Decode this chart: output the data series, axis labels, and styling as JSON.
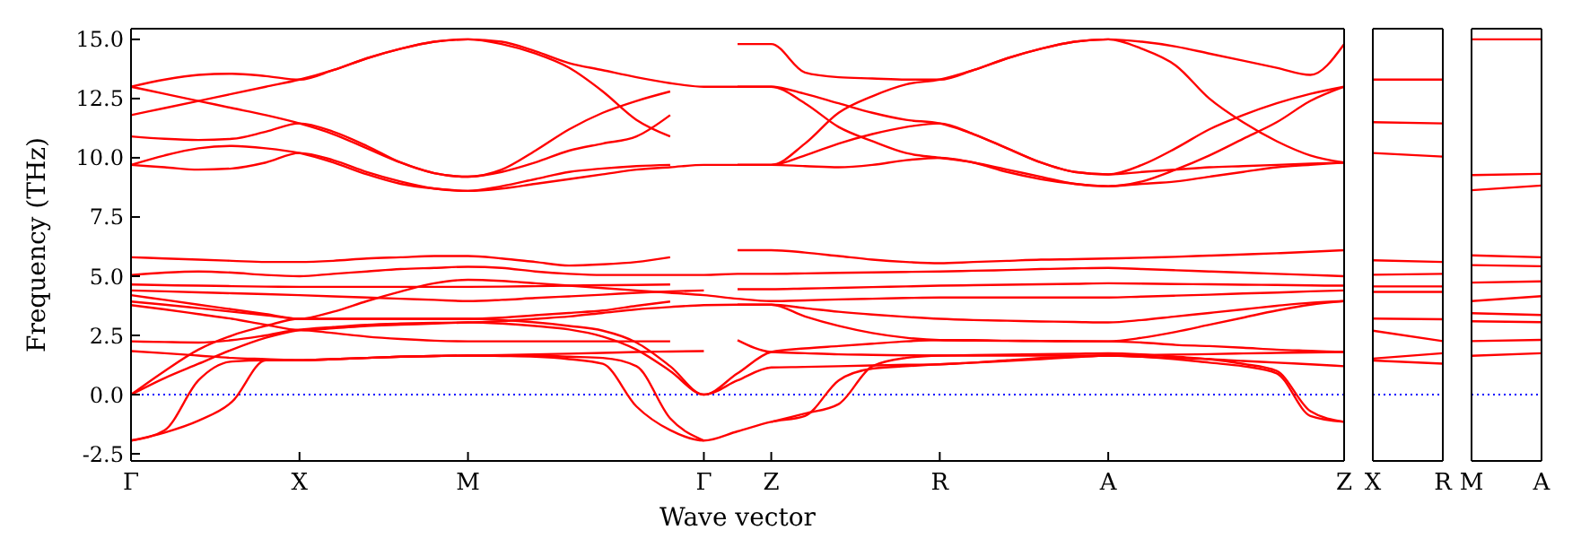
{
  "chart_data": [
    {
      "type": "line",
      "xlabel": "Wave vector",
      "ylabel": "Frequency (THz)",
      "ylim": [
        -2.8,
        15.45
      ],
      "categories": [
        "Γ",
        null,
        null,
        null,
        null,
        "X",
        null,
        null,
        null,
        null,
        "M",
        null,
        null,
        null,
        null,
        null,
        null,
        "Γ",
        null,
        "Z",
        null,
        null,
        null,
        null,
        "R",
        null,
        null,
        null,
        null,
        "A",
        null,
        null,
        null,
        null,
        null,
        null,
        "Z"
      ],
      "yticks": [
        {
          "value": -2.5,
          "label": "-2.5"
        },
        {
          "value": 0,
          "label": "0.0"
        },
        {
          "value": 2.5,
          "label": "2.5"
        },
        {
          "value": 5,
          "label": "5.0"
        },
        {
          "value": 7.5,
          "label": "7.5"
        },
        {
          "value": 10,
          "label": "10.0"
        },
        {
          "value": 12.5,
          "label": "12.5"
        },
        {
          "value": 15,
          "label": "15.0"
        }
      ],
      "ref_lines": [
        {
          "axis": "y",
          "value": 0,
          "color": "#0000ff",
          "line_style": "dotted"
        }
      ],
      "series": [
        {
          "color": "#ff0000",
          "values": [
            13.0,
            13.3,
            13.5,
            13.55,
            13.45,
            13.3,
            13.7,
            14.2,
            14.6,
            14.9,
            15.0,
            14.9,
            14.5,
            14.0,
            13.7,
            13.4,
            13.15,
            13.0,
            13.0,
            13.0,
            12.7,
            12.3,
            11.9,
            11.6,
            11.45,
            11.0,
            10.4,
            9.8,
            9.4,
            9.3,
            9.7,
            10.4,
            11.2,
            11.8,
            12.3,
            12.7,
            13.0
          ]
        },
        {
          "color": "#ff0000",
          "values": [
            13.0,
            12.7,
            12.4,
            12.1,
            11.8,
            11.45,
            11.0,
            10.4,
            9.8,
            9.35,
            9.2,
            9.5,
            10.3,
            11.2,
            11.9,
            12.4,
            12.8,
            null,
            9.7,
            9.7,
            10.6,
            11.9,
            12.6,
            13.1,
            13.3,
            13.7,
            14.2,
            14.6,
            14.9,
            15.0,
            14.6,
            13.9,
            12.5,
            11.5,
            10.7,
            10.1,
            9.8
          ]
        },
        {
          "color": "#ff0000",
          "values": [
            11.8,
            12.1,
            12.4,
            12.7,
            13.0,
            13.3,
            13.7,
            14.2,
            14.6,
            14.9,
            15.0,
            14.8,
            14.4,
            13.8,
            12.8,
            11.6,
            10.9,
            null,
            9.7,
            9.7,
            9.65,
            9.6,
            9.7,
            9.9,
            10.0,
            9.8,
            9.5,
            9.2,
            8.9,
            8.8,
            8.9,
            9.0,
            9.2,
            9.4,
            9.6,
            9.7,
            9.8
          ]
        },
        {
          "color": "#ff0000",
          "values": [
            10.9,
            10.8,
            10.75,
            10.8,
            11.1,
            11.45,
            11.1,
            10.5,
            9.8,
            9.35,
            9.2,
            9.4,
            9.8,
            10.3,
            10.6,
            10.9,
            11.8,
            null,
            14.8,
            14.8,
            13.6,
            13.4,
            13.35,
            13.3,
            13.3,
            13.7,
            14.2,
            14.6,
            14.9,
            15.0,
            14.9,
            14.7,
            14.4,
            14.1,
            13.8,
            13.5,
            14.8
          ]
        },
        {
          "color": "#ff0000",
          "values": [
            9.7,
            10.1,
            10.4,
            10.5,
            10.4,
            10.2,
            9.8,
            9.3,
            8.9,
            8.7,
            8.6,
            8.8,
            9.1,
            9.4,
            9.55,
            9.65,
            9.7,
            null,
            13.0,
            13.0,
            12.3,
            11.3,
            10.7,
            10.2,
            10.0,
            9.8,
            9.4,
            9.1,
            8.9,
            8.8,
            9.0,
            9.5,
            10.1,
            10.8,
            11.5,
            12.4,
            13.0
          ]
        },
        {
          "color": "#ff0000",
          "values": [
            9.7,
            9.6,
            9.5,
            9.55,
            9.8,
            10.2,
            9.9,
            9.4,
            9.0,
            8.7,
            8.6,
            8.7,
            8.9,
            9.1,
            9.3,
            9.5,
            9.6,
            9.7,
            9.7,
            9.7,
            10.1,
            10.6,
            11.0,
            11.3,
            11.45,
            11.0,
            10.4,
            9.8,
            9.4,
            9.3,
            9.4,
            9.5,
            9.6,
            9.65,
            9.7,
            9.75,
            9.8
          ]
        },
        {
          "color": "#ff0000",
          "values": [
            5.8,
            5.75,
            5.7,
            5.65,
            5.6,
            5.6,
            5.65,
            5.75,
            5.8,
            5.85,
            5.85,
            5.75,
            5.6,
            5.45,
            5.5,
            5.6,
            5.8,
            null,
            6.1,
            6.1,
            6.0,
            5.85,
            5.7,
            5.6,
            5.55,
            5.6,
            5.65,
            5.7,
            5.72,
            5.75,
            5.78,
            5.82,
            5.87,
            5.92,
            5.97,
            6.03,
            6.1
          ]
        },
        {
          "color": "#ff0000",
          "values": [
            5.05,
            5.15,
            5.2,
            5.15,
            5.05,
            5.0,
            5.1,
            5.2,
            5.3,
            5.35,
            5.4,
            5.35,
            5.2,
            5.1,
            5.05,
            5.05,
            5.05,
            5.05,
            5.1,
            5.1,
            5.12,
            5.14,
            5.16,
            5.18,
            5.2,
            5.23,
            5.26,
            5.3,
            5.33,
            5.35,
            5.3,
            5.25,
            5.2,
            5.15,
            5.1,
            5.05,
            5.0
          ]
        },
        {
          "color": "#ff0000",
          "values": [
            4.65,
            4.62,
            4.6,
            4.58,
            4.56,
            4.55,
            4.55,
            4.55,
            4.55,
            4.55,
            4.55,
            4.56,
            4.58,
            4.6,
            4.62,
            4.63,
            4.65,
            null,
            4.45,
            4.45,
            4.48,
            4.51,
            4.54,
            4.57,
            4.6,
            4.62,
            4.64,
            4.66,
            4.68,
            4.7,
            4.69,
            4.67,
            4.66,
            4.64,
            4.63,
            4.61,
            4.6
          ]
        },
        {
          "color": "#ff0000",
          "values": [
            4.4,
            4.36,
            4.32,
            4.28,
            4.24,
            4.2,
            4.15,
            4.1,
            4.05,
            4.0,
            3.95,
            4.0,
            4.08,
            4.15,
            4.22,
            4.3,
            4.36,
            4.4,
            null,
            null,
            null,
            null,
            null,
            null,
            null,
            null,
            null,
            null,
            null,
            null,
            null,
            null,
            null,
            null,
            null,
            null,
            null
          ]
        },
        {
          "color": "#ff0000",
          "values": [
            4.2,
            4.0,
            3.8,
            3.6,
            3.4,
            3.2,
            3.5,
            3.95,
            4.35,
            4.7,
            4.85,
            4.8,
            4.7,
            4.6,
            4.5,
            4.4,
            4.3,
            4.2,
            4.05,
            3.95,
            3.98,
            4.02,
            4.05,
            4.08,
            4.1,
            4.1,
            4.1,
            4.1,
            4.1,
            4.1,
            4.14,
            4.18,
            4.22,
            4.27,
            4.31,
            4.36,
            4.4
          ]
        },
        {
          "color": "#ff0000",
          "values": [
            3.93,
            3.8,
            3.65,
            3.5,
            3.35,
            3.2,
            3.2,
            3.2,
            3.2,
            3.2,
            3.2,
            3.25,
            3.35,
            3.45,
            3.55,
            3.75,
            3.93,
            null,
            3.8,
            3.8,
            3.3,
            2.9,
            2.6,
            2.4,
            2.3,
            2.28,
            2.27,
            2.26,
            2.25,
            2.25,
            2.4,
            2.65,
            2.95,
            3.25,
            3.55,
            3.8,
            3.95
          ]
        },
        {
          "color": "#ff0000",
          "values": [
            3.78,
            3.6,
            3.4,
            3.2,
            2.95,
            2.73,
            2.8,
            2.9,
            2.95,
            3.0,
            3.05,
            3.1,
            3.2,
            3.3,
            3.45,
            3.6,
            3.7,
            3.78,
            3.8,
            3.8,
            3.65,
            3.5,
            3.38,
            3.28,
            3.2,
            3.15,
            3.12,
            3.09,
            3.07,
            3.05,
            3.15,
            3.3,
            3.45,
            3.6,
            3.75,
            3.88,
            3.95
          ]
        },
        {
          "color": "#ff0000",
          "values": [
            2.25,
            2.22,
            2.2,
            2.3,
            2.5,
            2.73,
            2.6,
            2.45,
            2.35,
            2.28,
            2.25,
            2.25,
            2.25,
            2.25,
            2.25,
            2.25,
            2.25,
            null,
            2.3,
            1.8,
            1.75,
            1.7,
            1.68,
            1.66,
            1.65,
            1.65,
            1.65,
            1.65,
            1.65,
            1.65,
            1.67,
            1.69,
            1.71,
            1.74,
            1.76,
            1.78,
            1.8
          ]
        },
        {
          "color": "#ff0000",
          "values": [
            1.84,
            1.75,
            1.65,
            1.55,
            1.5,
            1.45,
            1.5,
            1.55,
            1.6,
            1.63,
            1.65,
            1.67,
            1.7,
            1.73,
            1.76,
            1.8,
            1.82,
            1.84,
            null,
            null,
            null,
            null,
            null,
            null,
            null,
            null,
            null,
            null,
            null,
            null,
            null,
            null,
            null,
            null,
            null,
            null,
            null
          ]
        },
        {
          "color": "#ff0000",
          "values": [
            0,
            0.7,
            1.3,
            1.9,
            2.4,
            2.73,
            2.85,
            2.95,
            3.0,
            3.03,
            3.05,
            3.0,
            2.9,
            2.75,
            2.45,
            1.9,
            1.0,
            0,
            0.9,
            1.8,
            1.95,
            2.05,
            2.15,
            2.25,
            2.3,
            2.3,
            2.28,
            2.27,
            2.26,
            2.25,
            2.2,
            2.1,
            2.05,
            1.98,
            1.9,
            1.85,
            1.8
          ]
        },
        {
          "color": "#ff0000",
          "values": [
            0,
            1.0,
            1.9,
            2.5,
            2.9,
            3.2,
            3.2,
            3.2,
            3.2,
            3.2,
            3.2,
            3.15,
            3.05,
            2.9,
            2.7,
            2.2,
            1.2,
            0,
            0.6,
            1.15,
            1.17,
            1.2,
            1.23,
            1.26,
            1.28,
            1.35,
            1.42,
            1.5,
            1.58,
            1.65,
            1.6,
            1.55,
            1.5,
            1.42,
            1.35,
            1.28,
            1.2
          ]
        },
        {
          "color": "#ff0000",
          "values": [
            -1.94,
            -1.5,
            0.6,
            1.4,
            1.45,
            1.45,
            1.5,
            1.55,
            1.6,
            1.63,
            1.65,
            1.63,
            1.6,
            1.5,
            1.3,
            -0.5,
            -1.5,
            -1.94,
            -1.55,
            -1.15,
            -0.9,
            0.6,
            1.1,
            1.2,
            1.28,
            1.35,
            1.45,
            1.55,
            1.6,
            1.65,
            1.6,
            1.5,
            1.35,
            1.2,
            0.9,
            -0.9,
            -1.15
          ]
        },
        {
          "color": "#ff0000",
          "values": [
            -1.94,
            -1.6,
            -1.1,
            -0.3,
            1.45,
            1.45,
            1.5,
            1.55,
            1.6,
            1.63,
            1.65,
            1.65,
            1.65,
            1.6,
            1.55,
            1.2,
            -1.0,
            -1.94,
            null,
            null,
            null,
            null,
            null,
            null,
            null,
            null,
            null,
            null,
            null,
            null,
            null,
            null,
            null,
            null,
            null,
            null,
            null
          ]
        },
        {
          "color": "#ff0000",
          "values": [
            null,
            null,
            null,
            null,
            null,
            null,
            null,
            null,
            null,
            null,
            null,
            null,
            null,
            null,
            null,
            null,
            null,
            null,
            null,
            -1.15,
            -0.8,
            -0.4,
            1.2,
            1.55,
            1.65,
            1.67,
            1.69,
            1.71,
            1.73,
            1.75,
            1.7,
            1.6,
            1.5,
            1.3,
            1.0,
            -0.7,
            -1.15
          ]
        }
      ]
    },
    {
      "type": "line",
      "ylim": [
        -2.8,
        15.45
      ],
      "tick_labels": "x",
      "categories": [
        "X",
        "R"
      ],
      "ref_lines": [
        {
          "axis": "y",
          "value": 0,
          "color": "#0000ff",
          "line_style": "dotted"
        }
      ],
      "series": [
        {
          "color": "#ff0000",
          "values": [
            13.3,
            13.3
          ]
        },
        {
          "color": "#ff0000",
          "values": [
            11.5,
            11.45
          ]
        },
        {
          "color": "#ff0000",
          "values": [
            10.2,
            10.05
          ]
        },
        {
          "color": "#ff0000",
          "values": [
            5.67,
            5.6
          ]
        },
        {
          "color": "#ff0000",
          "values": [
            5.06,
            5.1
          ]
        },
        {
          "color": "#ff0000",
          "values": [
            4.57,
            4.57
          ]
        },
        {
          "color": "#ff0000",
          "values": [
            4.34,
            4.34
          ]
        },
        {
          "color": "#ff0000",
          "values": [
            3.21,
            3.18
          ]
        },
        {
          "color": "#ff0000",
          "values": [
            2.7,
            2.26
          ]
        },
        {
          "color": "#ff0000",
          "values": [
            1.52,
            1.75
          ]
        },
        {
          "color": "#ff0000",
          "values": [
            1.44,
            1.31
          ]
        }
      ]
    },
    {
      "type": "line",
      "ylim": [
        -2.8,
        15.45
      ],
      "tick_labels": "x",
      "categories": [
        "M",
        "A"
      ],
      "yticks": [
        {
          "value": -2.5,
          "label": null
        },
        {
          "value": 0,
          "label": null
        },
        {
          "value": 2.5,
          "label": null
        },
        {
          "value": 5,
          "label": null
        },
        {
          "value": 7.5,
          "label": null
        },
        {
          "value": 10,
          "label": null
        },
        {
          "value": 12.5,
          "label": null
        },
        {
          "value": 15,
          "label": null
        }
      ],
      "ref_lines": [
        {
          "axis": "y",
          "value": 0,
          "color": "#0000ff",
          "line_style": "dotted"
        }
      ],
      "series": [
        {
          "color": "#ff0000",
          "values": [
            15.0,
            15.0
          ]
        },
        {
          "color": "#ff0000",
          "values": [
            9.27,
            9.32
          ]
        },
        {
          "color": "#ff0000",
          "values": [
            8.63,
            8.83
          ]
        },
        {
          "color": "#ff0000",
          "values": [
            5.88,
            5.8
          ]
        },
        {
          "color": "#ff0000",
          "values": [
            5.47,
            5.42
          ]
        },
        {
          "color": "#ff0000",
          "values": [
            4.73,
            4.78
          ]
        },
        {
          "color": "#ff0000",
          "values": [
            3.95,
            4.16
          ]
        },
        {
          "color": "#ff0000",
          "values": [
            3.44,
            3.36
          ]
        },
        {
          "color": "#ff0000",
          "values": [
            3.1,
            3.06
          ]
        },
        {
          "color": "#ff0000",
          "values": [
            2.26,
            2.31
          ]
        },
        {
          "color": "#ff0000",
          "values": [
            1.64,
            1.75
          ]
        }
      ]
    }
  ]
}
